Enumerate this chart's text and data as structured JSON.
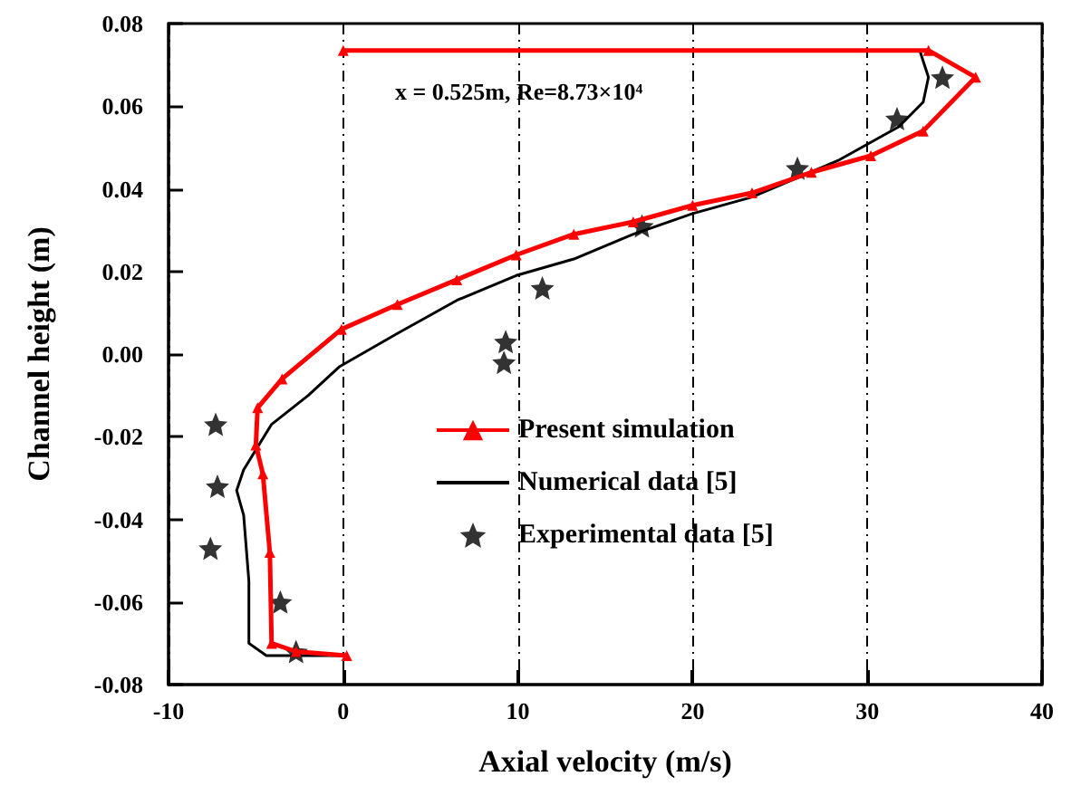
{
  "chart_data": {
    "type": "line",
    "xlabel": "Axial velocity (m/s)",
    "ylabel": "Channel height (m)",
    "annotations": [
      "x = 0.525m, Re=8.73×10⁴"
    ],
    "xlim": [
      -10,
      40
    ],
    "xticks": [
      -10,
      0,
      10,
      20,
      30,
      40
    ],
    "ylim": [
      -0.08,
      0.08
    ],
    "yticks": [
      -0.08,
      -0.06,
      -0.04,
      -0.02,
      {
        "value": 0,
        "label": "0.00"
      },
      0.02,
      0.04,
      0.06,
      0.08
    ],
    "grid": "x",
    "legend": "bottom",
    "series": [
      {
        "name": "Present simulation",
        "marker": "triangle",
        "color": "#ff0000",
        "x": [
          0,
          33.5,
          36.2,
          33.2,
          30.2,
          26.8,
          23.4,
          20,
          16.6,
          13.2,
          9.9,
          6.5,
          3.1,
          -0.1,
          -3.5,
          -4.9,
          -5.0,
          -4.6,
          -4.2,
          -4.1,
          -2.7,
          0.2
        ],
        "values": [
          0.0735,
          0.0735,
          0.067,
          0.054,
          0.048,
          0.044,
          0.039,
          0.036,
          0.032,
          0.029,
          0.024,
          0.018,
          0.012,
          0.006,
          -0.006,
          -0.013,
          -0.022,
          -0.029,
          -0.048,
          -0.07,
          -0.072,
          -0.073
        ]
      },
      {
        "name": "Numerical data [5]",
        "marker": "none",
        "color": "#000000",
        "x": [
          0,
          33.0,
          33.5,
          33.2,
          31.8,
          28.4,
          23.4,
          20,
          16.6,
          13.2,
          9.9,
          6.5,
          3.1,
          -0.2,
          -2.0,
          -4.1,
          -5.7,
          -6.1,
          -5.7,
          -5.4,
          -5.4,
          -4.4,
          0
        ],
        "values": [
          0.0735,
          0.0735,
          0.067,
          0.061,
          0.055,
          0.047,
          0.038,
          0.034,
          0.029,
          0.023,
          0.019,
          0.013,
          0.005,
          -0.003,
          -0.01,
          -0.017,
          -0.028,
          -0.033,
          -0.039,
          -0.055,
          -0.07,
          -0.073,
          -0.073
        ]
      },
      {
        "name": "Experimental data [5]",
        "type": "scatter",
        "marker": "star",
        "color": "#000000",
        "x": [
          34.3,
          31.7,
          26.0,
          17.1,
          11.4,
          9.3,
          9.2,
          -7.3,
          -7.2,
          -7.6,
          -3.6,
          -2.7
        ],
        "values": [
          0.067,
          0.057,
          0.045,
          0.031,
          0.016,
          0.003,
          -0.002,
          -0.017,
          -0.032,
          -0.047,
          -0.06,
          -0.072
        ]
      }
    ]
  }
}
